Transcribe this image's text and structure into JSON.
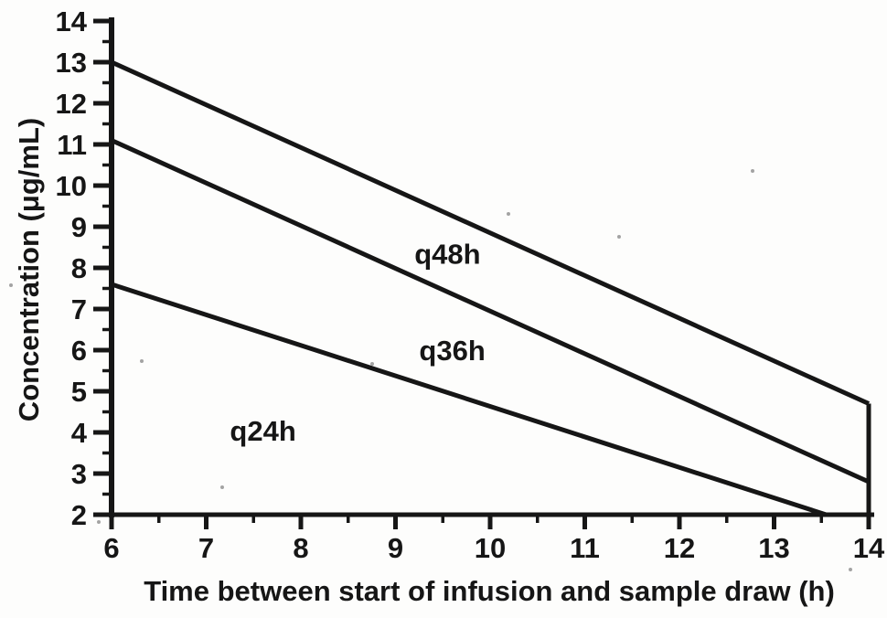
{
  "figure": {
    "kind": "scanned-nomogram",
    "background_color": "#fdfdfc",
    "ink_color": "#161616"
  },
  "chart_data": {
    "type": "line",
    "title": "",
    "xlabel": "Time between start of infusion and sample draw (h)",
    "ylabel": "Concentration (μg/mL)",
    "xlim": [
      6,
      14
    ],
    "ylim": [
      2,
      14
    ],
    "x_ticks": [
      6,
      7,
      8,
      9,
      10,
      11,
      12,
      13,
      14
    ],
    "y_ticks": [
      2,
      3,
      4,
      5,
      6,
      7,
      8,
      9,
      10,
      11,
      12,
      13,
      14
    ],
    "x_minor_step": 0.5,
    "y_minor_step": 0.5,
    "grid": false,
    "legend": "none",
    "line_color": "#161616",
    "series": [
      {
        "name": "q48h-upper-boundary",
        "points": [
          [
            6,
            13.0
          ],
          [
            14,
            4.7
          ]
        ]
      },
      {
        "name": "q36h-q48h-boundary",
        "points": [
          [
            6,
            11.1
          ],
          [
            14,
            2.8
          ]
        ]
      },
      {
        "name": "q24h-q36h-boundary",
        "points": [
          [
            6,
            7.6
          ],
          [
            13.55,
            2.0
          ]
        ]
      },
      {
        "name": "right-edge-at-14h",
        "points": [
          [
            14,
            4.7
          ],
          [
            14,
            2.0
          ]
        ]
      }
    ],
    "region_labels": [
      {
        "text": "q48h",
        "x": 9.55,
        "y": 8.35
      },
      {
        "text": "q36h",
        "x": 9.6,
        "y": 6.0
      },
      {
        "text": "q24h",
        "x": 7.6,
        "y": 4.05
      }
    ]
  }
}
